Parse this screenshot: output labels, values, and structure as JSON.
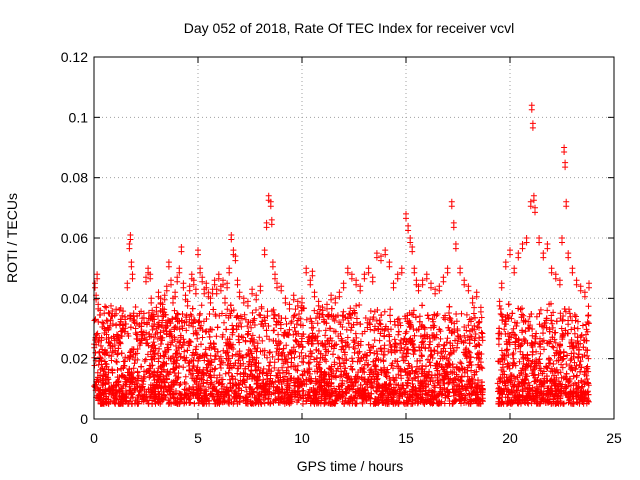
{
  "chart_data": {
    "type": "scatter",
    "title": "Day 052 of 2018, Rate Of TEC Index for receiver vcvl",
    "xlabel": "GPS time / hours",
    "ylabel": "ROTI / TECUs",
    "xlim": [
      0,
      25
    ],
    "ylim": [
      0,
      0.12
    ],
    "xticks": [
      0,
      5,
      10,
      15,
      20,
      25
    ],
    "xtick_labels": [
      "0",
      "5",
      "10",
      "15",
      "20",
      "25"
    ],
    "yticks": [
      0,
      0.02,
      0.04,
      0.06,
      0.08,
      0.1,
      0.12
    ],
    "ytick_labels": [
      "0",
      "0.02",
      "0.04",
      "0.06",
      "0.08",
      "0.1",
      "0.12"
    ],
    "grid": true,
    "marker": "+",
    "color": "#ff0000",
    "description_note": "Dense ROTI cloud 0.003-0.035 TECU/s, data gap 18.7-19.4 h",
    "series": [
      {
        "name": "ROTI",
        "x": [
          0.05,
          0.1,
          0.15,
          0.2,
          0.3,
          0.4,
          0.5,
          0.6,
          0.7,
          0.8,
          0.9,
          1.0,
          1.1,
          1.2,
          1.3,
          1.4,
          1.5,
          1.6,
          1.7,
          1.75,
          1.8,
          1.85,
          1.9,
          2.0,
          2.1,
          2.2,
          2.3,
          2.4,
          2.5,
          2.6,
          2.7,
          2.75,
          2.8,
          2.9,
          3.0,
          3.1,
          3.2,
          3.3,
          3.4,
          3.5,
          3.6,
          3.7,
          3.8,
          3.9,
          4.0,
          4.1,
          4.2,
          4.3,
          4.4,
          4.5,
          4.6,
          4.7,
          4.8,
          4.9,
          5.0,
          5.1,
          5.2,
          5.3,
          5.4,
          5.5,
          5.6,
          5.7,
          5.8,
          5.9,
          6.0,
          6.1,
          6.2,
          6.3,
          6.4,
          6.5,
          6.6,
          6.7,
          6.8,
          6.9,
          7.0,
          7.2,
          7.4,
          7.6,
          7.8,
          8.0,
          8.2,
          8.3,
          8.4,
          8.5,
          8.55,
          8.6,
          8.7,
          8.8,
          9.0,
          9.2,
          9.4,
          9.6,
          9.8,
          10.0,
          10.2,
          10.4,
          10.5,
          10.6,
          10.8,
          11.0,
          11.2,
          11.4,
          11.6,
          11.8,
          12.0,
          12.2,
          12.4,
          12.6,
          12.8,
          13.0,
          13.2,
          13.4,
          13.6,
          13.8,
          14.0,
          14.2,
          14.4,
          14.6,
          14.8,
          15.0,
          15.1,
          15.2,
          15.3,
          15.4,
          15.5,
          15.6,
          15.8,
          16.0,
          16.2,
          16.4,
          16.6,
          16.8,
          17.0,
          17.2,
          17.3,
          17.4,
          17.6,
          17.8,
          18.0,
          18.2,
          18.4,
          18.6,
          19.5,
          19.6,
          19.8,
          20.0,
          20.2,
          20.4,
          20.6,
          20.8,
          21.0,
          21.05,
          21.1,
          21.15,
          21.2,
          21.4,
          21.6,
          21.8,
          22.0,
          22.2,
          22.4,
          22.5,
          22.6,
          22.65,
          22.7,
          22.8,
          23.0,
          23.2,
          23.4,
          23.6,
          23.8
        ],
        "y": [
          0.045,
          0.041,
          0.048,
          0.038,
          0.036,
          0.032,
          0.03,
          0.028,
          0.027,
          0.025,
          0.024,
          0.026,
          0.028,
          0.027,
          0.029,
          0.031,
          0.033,
          0.045,
          0.058,
          0.061,
          0.052,
          0.048,
          0.034,
          0.03,
          0.028,
          0.026,
          0.029,
          0.035,
          0.047,
          0.05,
          0.048,
          0.04,
          0.036,
          0.033,
          0.037,
          0.042,
          0.04,
          0.038,
          0.041,
          0.044,
          0.052,
          0.046,
          0.04,
          0.042,
          0.047,
          0.05,
          0.057,
          0.045,
          0.041,
          0.039,
          0.044,
          0.048,
          0.046,
          0.043,
          0.056,
          0.05,
          0.047,
          0.043,
          0.045,
          0.042,
          0.04,
          0.043,
          0.046,
          0.043,
          0.048,
          0.044,
          0.046,
          0.04,
          0.045,
          0.05,
          0.061,
          0.056,
          0.054,
          0.046,
          0.042,
          0.04,
          0.039,
          0.043,
          0.041,
          0.044,
          0.056,
          0.065,
          0.074,
          0.072,
          0.066,
          0.052,
          0.048,
          0.045,
          0.044,
          0.04,
          0.038,
          0.041,
          0.039,
          0.04,
          0.05,
          0.046,
          0.049,
          0.042,
          0.039,
          0.036,
          0.038,
          0.041,
          0.04,
          0.042,
          0.045,
          0.05,
          0.048,
          0.046,
          0.044,
          0.048,
          0.05,
          0.047,
          0.055,
          0.054,
          0.056,
          0.052,
          0.045,
          0.048,
          0.05,
          0.068,
          0.064,
          0.06,
          0.057,
          0.05,
          0.046,
          0.044,
          0.046,
          0.048,
          0.045,
          0.043,
          0.044,
          0.047,
          0.05,
          0.072,
          0.065,
          0.058,
          0.05,
          0.046,
          0.044,
          0.04,
          0.042,
          0.037,
          0.039,
          0.045,
          0.052,
          0.056,
          0.05,
          0.055,
          0.058,
          0.06,
          0.072,
          0.104,
          0.098,
          0.074,
          0.07,
          0.06,
          0.055,
          0.058,
          0.05,
          0.048,
          0.046,
          0.06,
          0.09,
          0.085,
          0.072,
          0.055,
          0.05,
          0.046,
          0.044,
          0.042,
          0.045
        ]
      }
    ]
  }
}
